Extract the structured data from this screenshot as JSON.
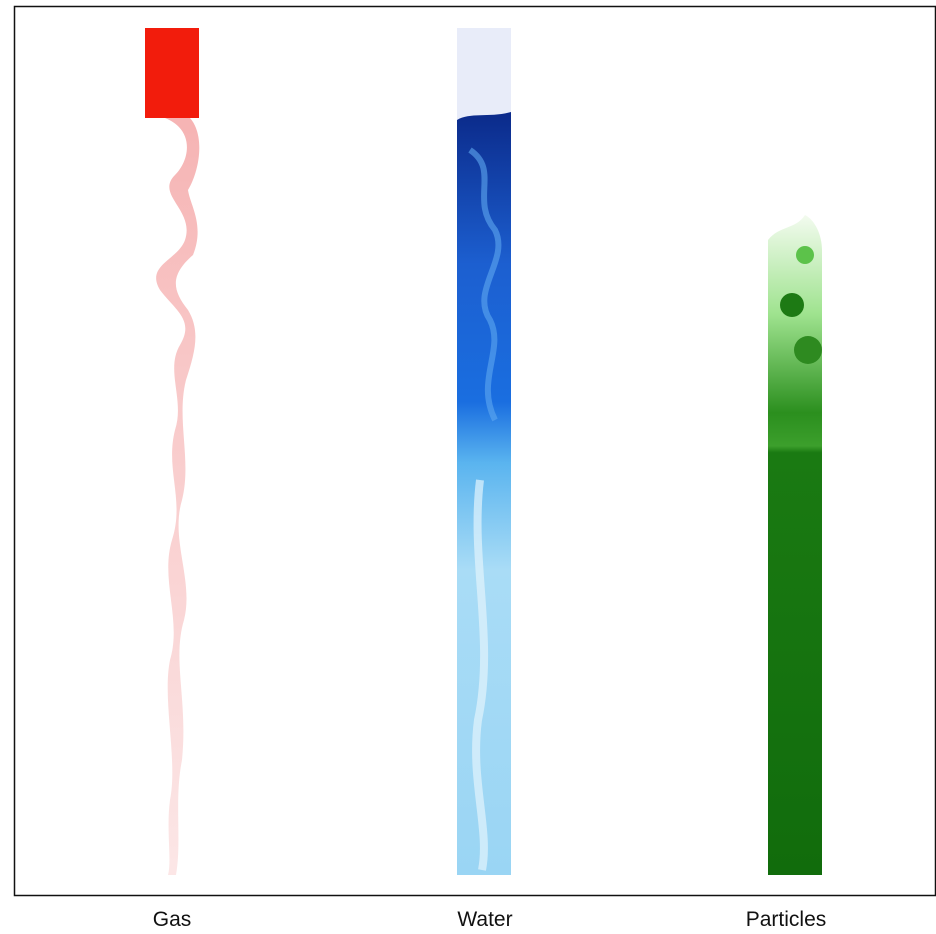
{
  "panels": [
    {
      "label": "Gas"
    },
    {
      "label": "Water"
    },
    {
      "label": "Particles"
    }
  ]
}
